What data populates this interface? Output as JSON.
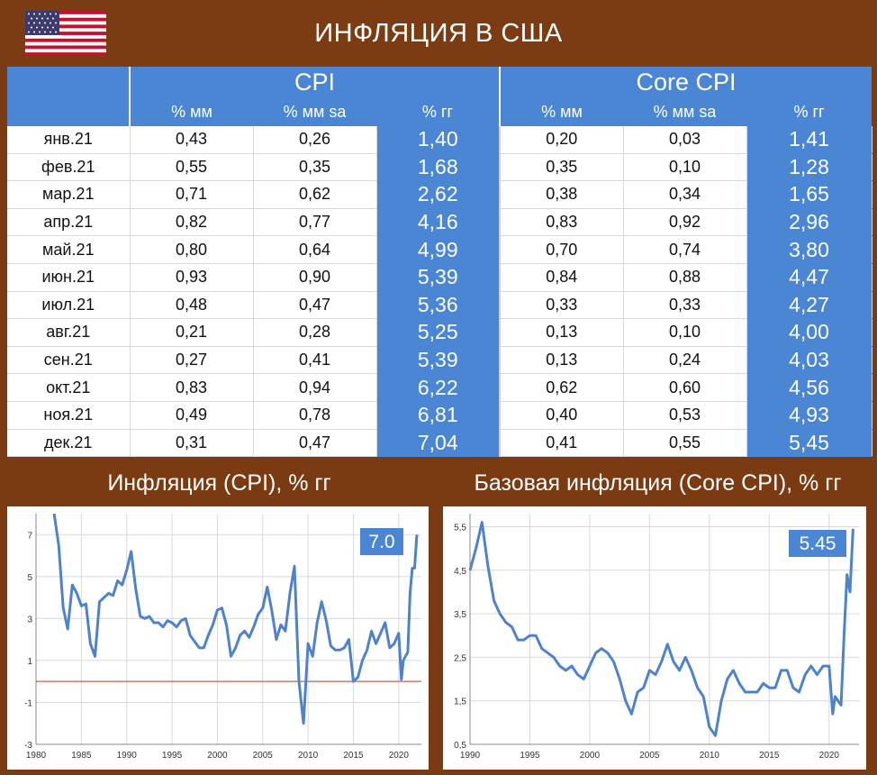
{
  "page": {
    "title": "ИНФЛЯЦИЯ В США"
  },
  "table": {
    "groups": [
      "CPI",
      "Core CPI"
    ],
    "subheaders": [
      "% мм",
      "% мм sa",
      "% гг",
      "% мм",
      "% мм sa",
      "% гг"
    ],
    "rows": [
      {
        "month": "янв.21",
        "cells": [
          "0,43",
          "0,26",
          "1,40",
          "0,20",
          "0,03",
          "1,41"
        ]
      },
      {
        "month": "фев.21",
        "cells": [
          "0,55",
          "0,35",
          "1,68",
          "0,35",
          "0,10",
          "1,28"
        ]
      },
      {
        "month": "мар.21",
        "cells": [
          "0,71",
          "0,62",
          "2,62",
          "0,38",
          "0,34",
          "1,65"
        ]
      },
      {
        "month": "апр.21",
        "cells": [
          "0,82",
          "0,77",
          "4,16",
          "0,83",
          "0,92",
          "2,96"
        ]
      },
      {
        "month": "май.21",
        "cells": [
          "0,80",
          "0,64",
          "4,99",
          "0,70",
          "0,74",
          "3,80"
        ]
      },
      {
        "month": "июн.21",
        "cells": [
          "0,93",
          "0,90",
          "5,39",
          "0,84",
          "0,88",
          "4,47"
        ]
      },
      {
        "month": "июл.21",
        "cells": [
          "0,48",
          "0,47",
          "5,36",
          "0,33",
          "0,33",
          "4,27"
        ]
      },
      {
        "month": "авг.21",
        "cells": [
          "0,21",
          "0,28",
          "5,25",
          "0,13",
          "0,10",
          "4,00"
        ]
      },
      {
        "month": "сен.21",
        "cells": [
          "0,27",
          "0,41",
          "5,39",
          "0,13",
          "0,24",
          "4,03"
        ]
      },
      {
        "month": "окт.21",
        "cells": [
          "0,83",
          "0,94",
          "6,22",
          "0,62",
          "0,60",
          "4,56"
        ]
      },
      {
        "month": "ноя.21",
        "cells": [
          "0,49",
          "0,78",
          "6,81",
          "0,40",
          "0,53",
          "4,93"
        ]
      },
      {
        "month": "дек.21",
        "cells": [
          "0,31",
          "0,47",
          "7,04",
          "0,41",
          "0,55",
          "5,45"
        ]
      }
    ]
  },
  "colors": {
    "brown": "#7a3a12",
    "blue": "#4a86d4",
    "line": "#4f83c9",
    "zero_line": "#c0392b"
  },
  "chart_data": [
    {
      "type": "line",
      "title": "Инфляция (CPI), % гг",
      "badge": "7.0",
      "xlim": [
        1980,
        2022.5
      ],
      "ylim": [
        -3,
        8
      ],
      "xticks": [
        1980,
        1985,
        1990,
        1995,
        2000,
        2005,
        2010,
        2015,
        2020
      ],
      "yticks": [
        -3,
        -1,
        1,
        3,
        5,
        7
      ],
      "reference_line_y": 0,
      "x": [
        1982.0,
        1982.5,
        1983.0,
        1983.5,
        1984.0,
        1984.5,
        1985.0,
        1985.5,
        1986.0,
        1986.5,
        1987.0,
        1987.5,
        1988.0,
        1988.5,
        1989.0,
        1989.5,
        1990.0,
        1990.5,
        1991.0,
        1991.5,
        1992.0,
        1992.5,
        1993.0,
        1993.5,
        1994.0,
        1994.5,
        1995.0,
        1995.5,
        1996.0,
        1996.5,
        1997.0,
        1997.5,
        1998.0,
        1998.5,
        1999.0,
        1999.5,
        2000.0,
        2000.5,
        2001.0,
        2001.5,
        2002.0,
        2002.5,
        2003.0,
        2003.5,
        2004.0,
        2004.5,
        2005.0,
        2005.5,
        2006.0,
        2006.5,
        2007.0,
        2007.5,
        2008.0,
        2008.5,
        2009.0,
        2009.5,
        2010.0,
        2010.5,
        2011.0,
        2011.5,
        2012.0,
        2012.5,
        2013.0,
        2013.5,
        2014.0,
        2014.5,
        2015.0,
        2015.5,
        2016.0,
        2016.5,
        2017.0,
        2017.5,
        2018.0,
        2018.5,
        2019.0,
        2019.5,
        2020.0,
        2020.3,
        2020.5,
        2021.0,
        2021.25,
        2021.5,
        2021.75,
        2022.0
      ],
      "y": [
        8.0,
        6.5,
        3.5,
        2.5,
        4.6,
        4.2,
        3.6,
        3.7,
        1.8,
        1.2,
        3.8,
        4.0,
        4.2,
        4.1,
        4.8,
        4.6,
        5.3,
        6.2,
        4.4,
        3.1,
        3.0,
        3.1,
        2.8,
        2.8,
        2.6,
        2.9,
        2.8,
        2.6,
        2.9,
        3.0,
        2.2,
        1.9,
        1.6,
        1.6,
        2.2,
        2.7,
        3.4,
        3.5,
        2.7,
        1.2,
        1.6,
        2.2,
        2.4,
        2.1,
        2.6,
        3.2,
        3.5,
        4.5,
        3.4,
        2.0,
        2.7,
        2.4,
        4.2,
        5.5,
        0.0,
        -2.0,
        1.8,
        1.2,
        2.8,
        3.8,
        2.9,
        1.7,
        1.5,
        1.5,
        1.6,
        2.0,
        0.0,
        0.2,
        1.0,
        1.5,
        2.4,
        1.8,
        2.3,
        2.8,
        1.6,
        1.8,
        2.3,
        0.1,
        1.0,
        1.4,
        4.2,
        5.4,
        5.4,
        7.0
      ],
      "line_color": "#4f83c9"
    },
    {
      "type": "line",
      "title": "Базовая инфляция (Core CPI), % гг",
      "badge": "5.45",
      "xlim": [
        1990,
        2022.5
      ],
      "ylim": [
        0.5,
        5.8
      ],
      "xticks": [
        1990,
        1995,
        2000,
        2005,
        2010,
        2015,
        2020
      ],
      "yticks": [
        0.5,
        1.5,
        2.5,
        3.5,
        4.5,
        5.5
      ],
      "x": [
        1990.0,
        1990.5,
        1991.0,
        1991.5,
        1992.0,
        1992.5,
        1993.0,
        1993.5,
        1994.0,
        1994.5,
        1995.0,
        1995.5,
        1996.0,
        1996.5,
        1997.0,
        1997.5,
        1998.0,
        1998.5,
        1999.0,
        1999.5,
        2000.0,
        2000.5,
        2001.0,
        2001.5,
        2002.0,
        2002.5,
        2003.0,
        2003.5,
        2004.0,
        2004.5,
        2005.0,
        2005.5,
        2006.0,
        2006.5,
        2007.0,
        2007.5,
        2008.0,
        2008.5,
        2009.0,
        2009.5,
        2010.0,
        2010.5,
        2011.0,
        2011.5,
        2012.0,
        2012.5,
        2013.0,
        2013.5,
        2014.0,
        2014.5,
        2015.0,
        2015.5,
        2016.0,
        2016.5,
        2017.0,
        2017.5,
        2018.0,
        2018.5,
        2019.0,
        2019.5,
        2020.0,
        2020.3,
        2020.5,
        2021.0,
        2021.25,
        2021.5,
        2021.75,
        2022.0
      ],
      "y": [
        4.5,
        5.0,
        5.6,
        4.6,
        3.8,
        3.5,
        3.3,
        3.2,
        2.9,
        2.9,
        3.0,
        3.0,
        2.7,
        2.6,
        2.5,
        2.3,
        2.2,
        2.3,
        2.1,
        2.0,
        2.3,
        2.6,
        2.7,
        2.6,
        2.4,
        2.0,
        1.5,
        1.2,
        1.7,
        1.8,
        2.2,
        2.1,
        2.4,
        2.8,
        2.4,
        2.2,
        2.5,
        2.2,
        1.8,
        1.6,
        0.9,
        0.7,
        1.5,
        2.0,
        2.2,
        1.9,
        1.7,
        1.7,
        1.7,
        1.9,
        1.8,
        1.8,
        2.2,
        2.2,
        1.8,
        1.7,
        2.1,
        2.3,
        2.1,
        2.3,
        2.3,
        1.2,
        1.6,
        1.4,
        3.0,
        4.4,
        4.0,
        5.45
      ],
      "line_color": "#4f83c9"
    }
  ]
}
